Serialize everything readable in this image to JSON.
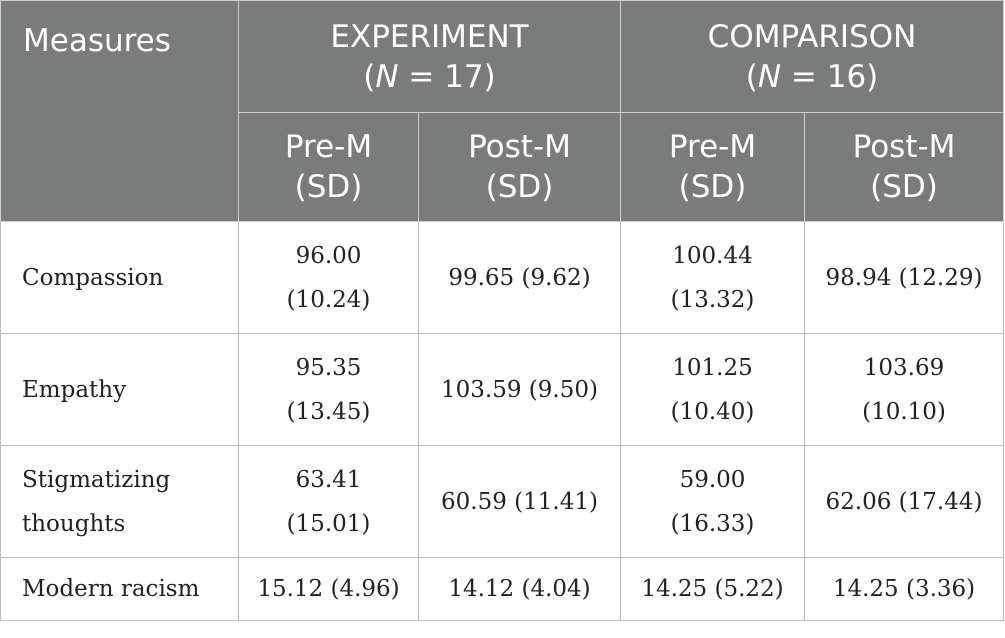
{
  "table": {
    "header": {
      "measures": "Measures",
      "experiment": {
        "title": "EXPERIMENT",
        "n_pre": "(",
        "n_italic": "N",
        "n_post": " = 17)"
      },
      "comparison": {
        "title": "COMPARISON",
        "n_pre": "(",
        "n_italic": "N",
        "n_post": " = 16)"
      },
      "sub": [
        {
          "line1": "Pre-M",
          "line2": "(SD)"
        },
        {
          "line1": "Post-M",
          "line2": "(SD)"
        },
        {
          "line1": "Pre-M",
          "line2": "(SD)"
        },
        {
          "line1": "Post-M",
          "line2": "(SD)"
        }
      ]
    },
    "rows": [
      {
        "label_line1": "Compassion",
        "label_line2": "",
        "cells": [
          {
            "l1": "96.00",
            "l2": "(10.24)"
          },
          {
            "l1": "99.65 (9.62)",
            "l2": ""
          },
          {
            "l1": "100.44",
            "l2": "(13.32)"
          },
          {
            "l1": "98.94 (12.29)",
            "l2": ""
          }
        ]
      },
      {
        "label_line1": "Empathy",
        "label_line2": "",
        "cells": [
          {
            "l1": "95.35",
            "l2": "(13.45)"
          },
          {
            "l1": "103.59 (9.50)",
            "l2": ""
          },
          {
            "l1": "101.25",
            "l2": "(10.40)"
          },
          {
            "l1": "103.69",
            "l2": "(10.10)"
          }
        ]
      },
      {
        "label_line1": "Stigmatizing",
        "label_line2": "thoughts",
        "cells": [
          {
            "l1": "63.41",
            "l2": "(15.01)"
          },
          {
            "l1": "60.59 (11.41)",
            "l2": ""
          },
          {
            "l1": "59.00",
            "l2": "(16.33)"
          },
          {
            "l1": "62.06 (17.44)",
            "l2": ""
          }
        ]
      },
      {
        "label_line1": "Modern racism",
        "label_line2": "",
        "cells": [
          {
            "l1": "15.12 (4.96)",
            "l2": ""
          },
          {
            "l1": "14.12 (4.04)",
            "l2": ""
          },
          {
            "l1": "14.25 (5.22)",
            "l2": ""
          },
          {
            "l1": "14.25 (3.36)",
            "l2": ""
          }
        ]
      }
    ],
    "colors": {
      "header_bg": "#7a7b7b",
      "header_text": "#ffffff",
      "border": "#bdbdbd"
    }
  }
}
